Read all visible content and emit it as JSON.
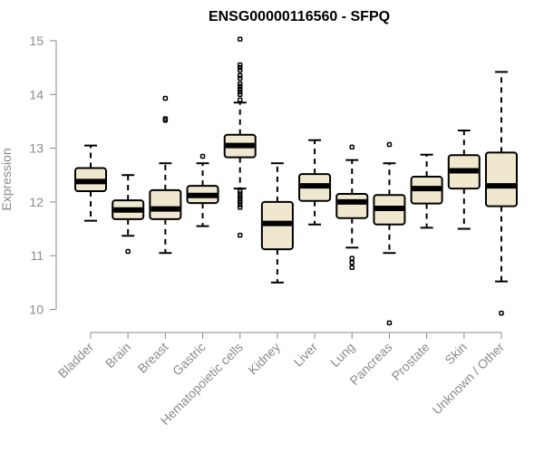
{
  "chart_data": {
    "type": "boxplot",
    "title": "ENSG00000116560 - SFPQ",
    "xlabel": "",
    "ylabel": "Expression",
    "ylim": [
      9.8,
      15.2
    ],
    "yticks": [
      10,
      11,
      12,
      13,
      14,
      15
    ],
    "categories": [
      "Bladder",
      "Brain",
      "Breast",
      "Gastric",
      "Hematopoietic cells",
      "Kidney",
      "Liver",
      "Lung",
      "Pancreas",
      "Prostate",
      "Skin",
      "Unknown / Other"
    ],
    "boxes": [
      {
        "name": "Bladder",
        "whisker_low": 11.65,
        "q1": 12.2,
        "median": 12.38,
        "q3": 12.63,
        "whisker_high": 13.05,
        "outliers": []
      },
      {
        "name": "Brain",
        "whisker_low": 11.37,
        "q1": 11.68,
        "median": 11.85,
        "q3": 12.03,
        "whisker_high": 12.5,
        "outliers": [
          11.08
        ]
      },
      {
        "name": "Breast",
        "whisker_low": 11.05,
        "q1": 11.68,
        "median": 11.87,
        "q3": 12.22,
        "whisker_high": 12.72,
        "outliers": [
          13.52,
          13.55,
          13.93
        ]
      },
      {
        "name": "Gastric",
        "whisker_low": 11.55,
        "q1": 11.98,
        "median": 12.12,
        "q3": 12.3,
        "whisker_high": 12.72,
        "outliers": [
          12.85
        ]
      },
      {
        "name": "Hematopoietic cells",
        "whisker_low": 12.25,
        "q1": 12.83,
        "median": 13.05,
        "q3": 13.25,
        "whisker_high": 13.85,
        "outliers": [
          11.38,
          11.9,
          11.95,
          12.0,
          12.05,
          12.1,
          12.15,
          12.2,
          13.9,
          14.0,
          14.05,
          14.1,
          14.15,
          14.2,
          14.3,
          14.35,
          14.45,
          14.5,
          14.55,
          15.03
        ]
      },
      {
        "name": "Kidney",
        "whisker_low": 10.5,
        "q1": 11.12,
        "median": 11.6,
        "q3": 12.0,
        "whisker_high": 12.72,
        "outliers": []
      },
      {
        "name": "Liver",
        "whisker_low": 11.58,
        "q1": 12.02,
        "median": 12.3,
        "q3": 12.52,
        "whisker_high": 13.15,
        "outliers": []
      },
      {
        "name": "Lung",
        "whisker_low": 11.15,
        "q1": 11.7,
        "median": 12.0,
        "q3": 12.15,
        "whisker_high": 12.78,
        "outliers": [
          10.78,
          10.87,
          10.95,
          13.02
        ]
      },
      {
        "name": "Pancreas",
        "whisker_low": 11.05,
        "q1": 11.58,
        "median": 11.88,
        "q3": 12.13,
        "whisker_high": 12.72,
        "outliers": [
          9.75,
          13.07
        ]
      },
      {
        "name": "Prostate",
        "whisker_low": 11.52,
        "q1": 11.97,
        "median": 12.25,
        "q3": 12.47,
        "whisker_high": 12.88,
        "outliers": []
      },
      {
        "name": "Skin",
        "whisker_low": 11.5,
        "q1": 12.25,
        "median": 12.58,
        "q3": 12.87,
        "whisker_high": 13.33,
        "outliers": []
      },
      {
        "name": "Unknown / Other",
        "whisker_low": 10.52,
        "q1": 11.92,
        "median": 12.3,
        "q3": 12.92,
        "whisker_high": 14.42,
        "outliers": [
          9.93
        ]
      }
    ]
  }
}
